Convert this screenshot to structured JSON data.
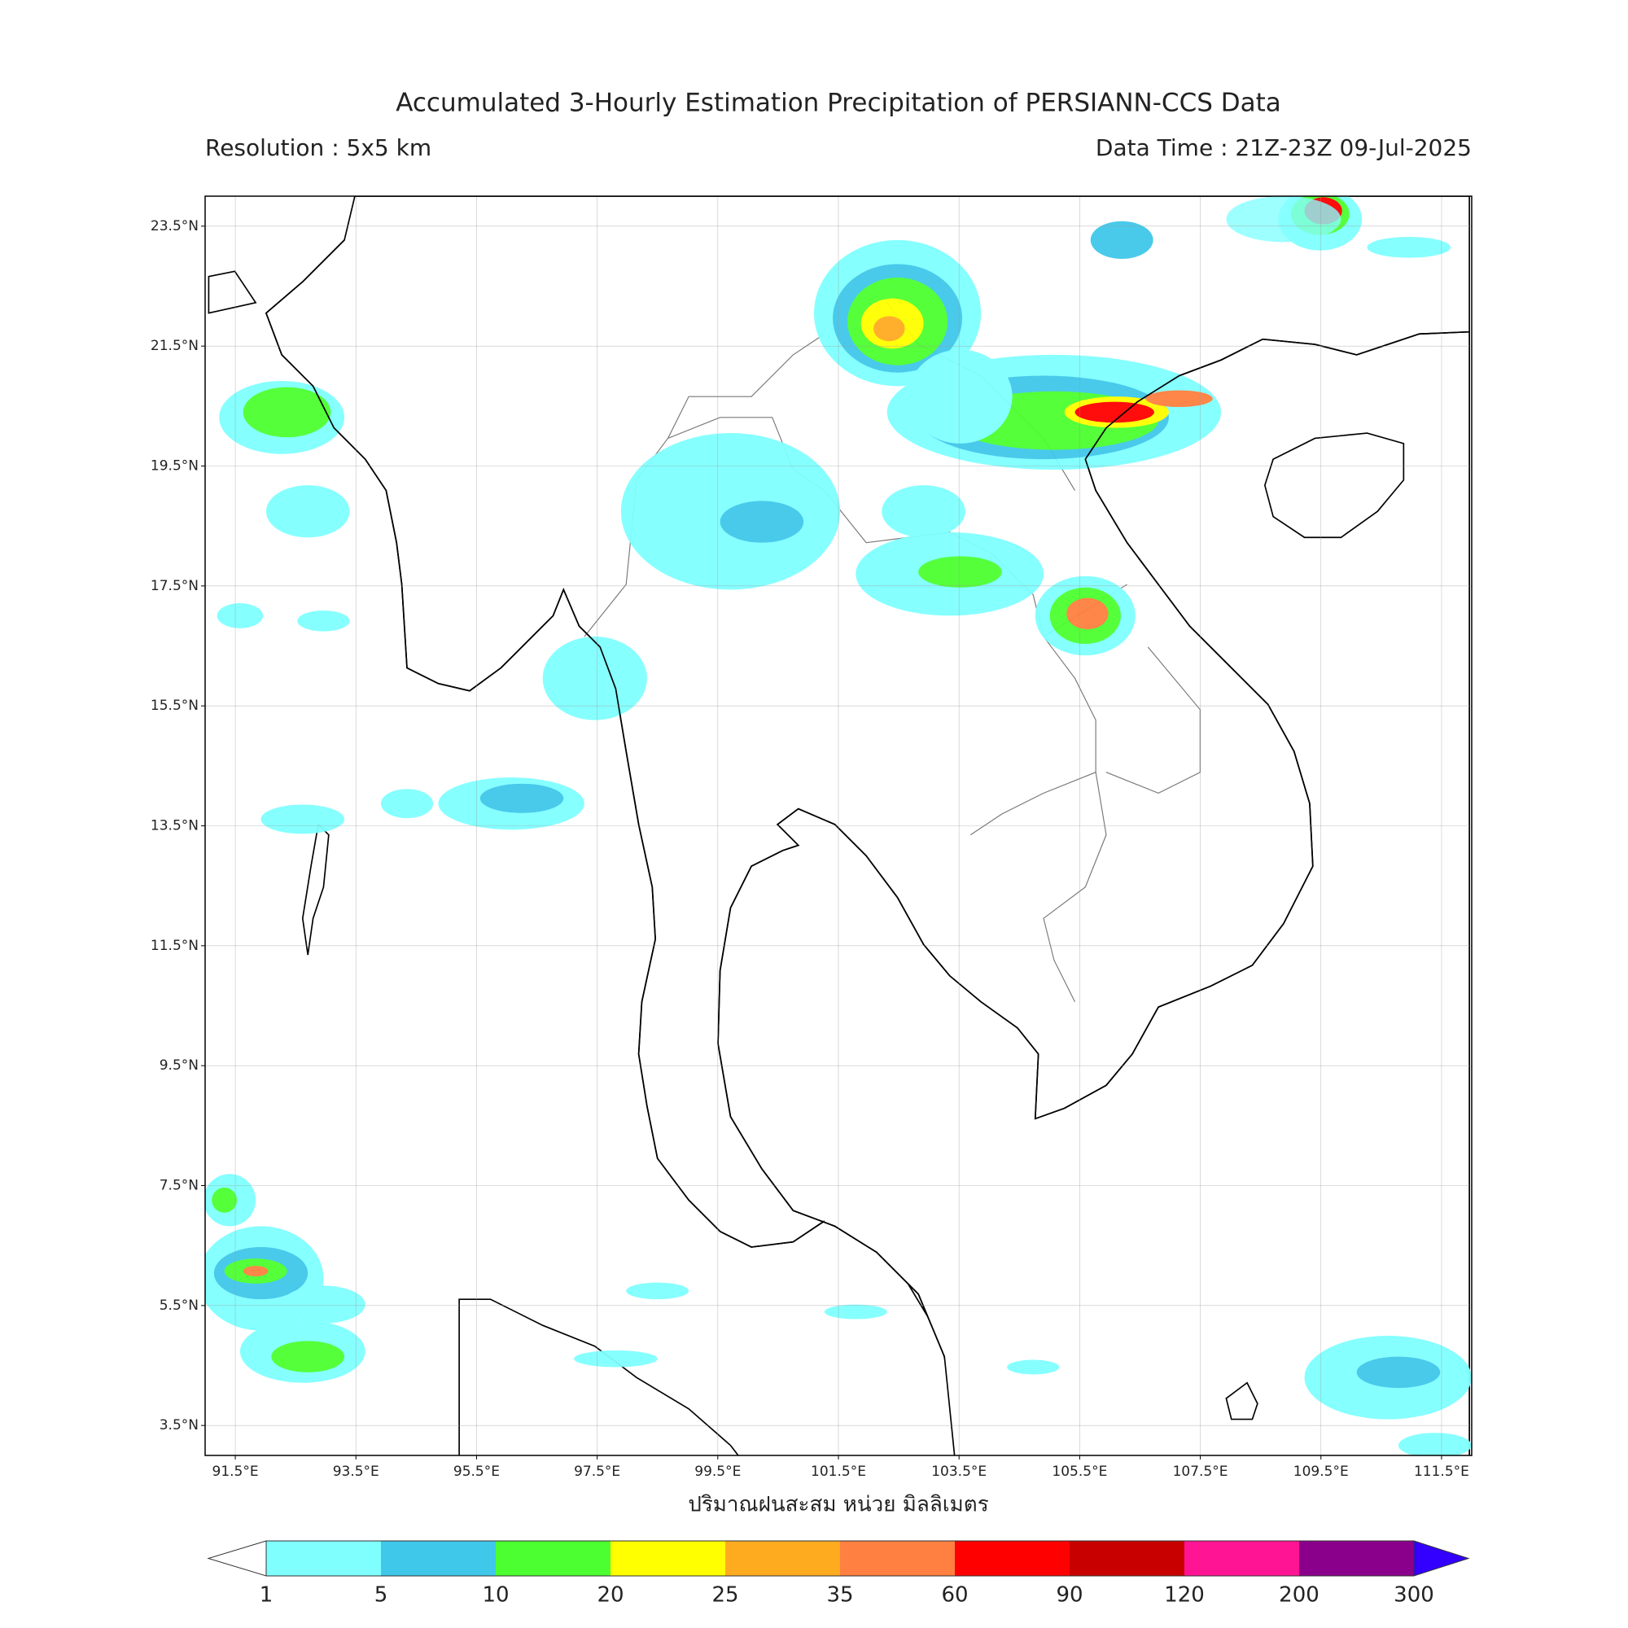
{
  "header": {
    "title": "Accumulated 3-Hourly Estimation Precipitation of PERSIANN-CCS Data",
    "resolution": "Resolution : 5x5 km",
    "data_time": "Data Time : 21Z-23Z 09-Jul-2025"
  },
  "map": {
    "xlim": [
      91,
      112
    ],
    "ylim": [
      3,
      24
    ],
    "grid": true,
    "xticks": [
      {
        "value": 91.5,
        "label": "91.5°E"
      },
      {
        "value": 93.5,
        "label": "93.5°E"
      },
      {
        "value": 95.5,
        "label": "95.5°E"
      },
      {
        "value": 97.5,
        "label": "97.5°E"
      },
      {
        "value": 99.5,
        "label": "99.5°E"
      },
      {
        "value": 101.5,
        "label": "101.5°E"
      },
      {
        "value": 103.5,
        "label": "103.5°E"
      },
      {
        "value": 105.5,
        "label": "105.5°E"
      },
      {
        "value": 107.5,
        "label": "107.5°E"
      },
      {
        "value": 109.5,
        "label": "109.5°E"
      },
      {
        "value": 111.5,
        "label": "111.5°E"
      }
    ],
    "yticks": [
      {
        "value": 23.5,
        "label": "23.5°N"
      },
      {
        "value": 21.5,
        "label": "21.5°N"
      },
      {
        "value": 19.5,
        "label": "19.5°N"
      },
      {
        "value": 17.5,
        "label": "17.5°N"
      },
      {
        "value": 15.5,
        "label": "15.5°N"
      },
      {
        "value": 13.5,
        "label": "13.5°N"
      },
      {
        "value": 11.5,
        "label": "11.5°N"
      },
      {
        "value": 9.5,
        "label": "9.5°N"
      },
      {
        "value": 7.5,
        "label": "7.5°N"
      },
      {
        "value": 5.5,
        "label": "5.5°N"
      },
      {
        "value": 3.5,
        "label": "3.5°N"
      }
    ],
    "xlabel": "ปริมาณฝนสะสม หน่วย มิลลิเมตร"
  },
  "colorbar": {
    "levels": [
      1,
      5,
      10,
      20,
      25,
      35,
      60,
      90,
      120,
      200,
      300
    ],
    "colors": [
      "#80ffff",
      "#40c8ea",
      "#4cff30",
      "#ffff00",
      "#ffab20",
      "#ff8040",
      "#ff0000",
      "#c80000",
      "#ff1493",
      "#8b008b"
    ],
    "under_color": "#ffffff",
    "over_color": "#3300ff"
  }
}
